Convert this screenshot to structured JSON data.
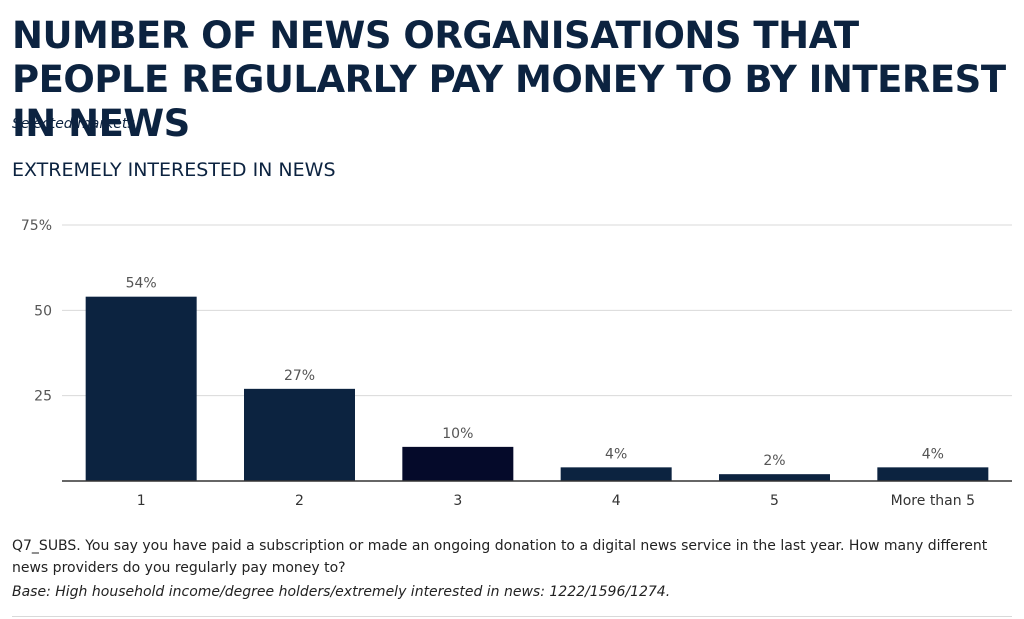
{
  "header": {
    "title": "NUMBER OF NEWS ORGANISATIONS THAT PEOPLE REGULARLY PAY MONEY TO BY INTEREST IN NEWS",
    "subtitle": "Selected markets",
    "section_heading": "EXTREMELY INTERESTED IN NEWS"
  },
  "footer": {
    "question": "Q7_SUBS. You say you have paid a subscription or made an ongoing donation to a digital news service in the last year. How many different news providers do you regularly pay money to?",
    "base": "Base: High household income/degree holders/extremely interested in news: 1222/1596/1274."
  },
  "chart_data": {
    "type": "bar",
    "title": "EXTREMELY INTERESTED IN NEWS",
    "categories": [
      "1",
      "2",
      "3",
      "4",
      "5",
      "More than 5"
    ],
    "values": [
      54,
      27,
      10,
      4,
      2,
      4
    ],
    "data_labels": [
      "54%",
      "27%",
      "10%",
      "4%",
      "2%",
      "4%"
    ],
    "y_ticks": [
      25,
      50,
      75
    ],
    "y_tick_labels": [
      "25",
      "50",
      "75%"
    ],
    "ylim": [
      0,
      75
    ],
    "grid": true,
    "colors": {
      "bar": "#0c2340",
      "bar_highlight": "#050a2a",
      "grid": "#d9d9d9",
      "axis": "#333333",
      "label": "#555555"
    }
  }
}
